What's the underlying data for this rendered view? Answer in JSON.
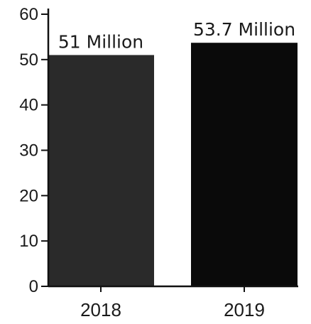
{
  "chart_data": {
    "type": "bar",
    "categories": [
      "2018",
      "2019"
    ],
    "values": [
      51,
      53.7
    ],
    "data_labels": [
      "51 Million",
      "53.7 Million"
    ],
    "yticks": [
      "60",
      "50",
      "40",
      "30",
      "20",
      "10",
      "0"
    ],
    "ylim": [
      0,
      60
    ],
    "grid": false,
    "colors": {
      "bars": [
        "#2a2a2a",
        "#0a0a0a"
      ],
      "axis": "#111111",
      "text": "#1a1a1a"
    }
  }
}
